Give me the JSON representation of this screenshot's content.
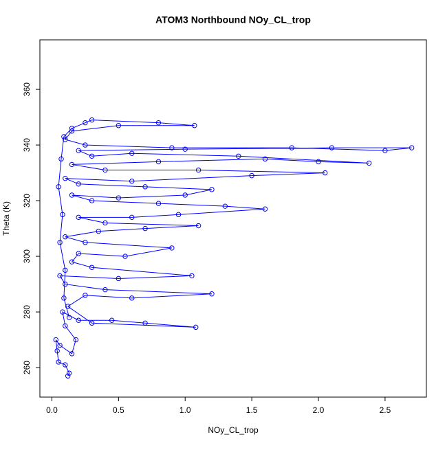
{
  "chart_data": {
    "type": "line",
    "markers": true,
    "color": "#0000ff",
    "title": "ATOM3 Northbound NOy_CL_trop",
    "x_label": "NOy_CL_trop",
    "y_label": "Theta (K)",
    "xlim": [
      -0.09,
      2.81
    ],
    "ylim": [
      249.4,
      377.8
    ],
    "xticks": [
      {
        "value": 0,
        "label": "0.0"
      },
      0.5,
      {
        "value": 1,
        "label": "1.0"
      },
      1.5,
      {
        "value": 2,
        "label": "2.0"
      },
      2.5
    ],
    "yticks": [
      260,
      280,
      300,
      320,
      340,
      360
    ],
    "grid": false,
    "x": [
      0.12,
      0.13,
      0.1,
      0.05,
      0.04,
      0.03,
      0.06,
      0.15,
      0.18,
      0.1,
      0.08,
      0.2,
      0.45,
      0.7,
      1.08,
      0.3,
      0.12,
      0.25,
      0.6,
      1.2,
      0.4,
      0.1,
      0.06,
      0.5,
      1.05,
      0.3,
      0.15,
      0.2,
      0.55,
      0.9,
      0.25,
      0.1,
      0.35,
      0.7,
      1.1,
      0.4,
      0.2,
      0.6,
      0.95,
      1.6,
      1.3,
      0.8,
      0.3,
      0.15,
      0.5,
      1.0,
      1.2,
      0.7,
      0.2,
      0.1,
      0.6,
      1.5,
      2.05,
      1.1,
      0.4,
      0.15,
      0.8,
      1.6,
      2.0,
      2.38,
      1.4,
      0.6,
      0.3,
      0.2,
      1.0,
      2.1,
      2.7,
      2.5,
      1.8,
      0.9,
      0.25,
      0.1,
      0.15,
      0.5,
      1.07,
      0.8,
      0.3,
      0.25,
      0.15,
      0.09,
      0.07,
      0.05,
      0.08,
      0.06,
      0.1,
      0.09,
      0.13
    ],
    "values": [
      257,
      258,
      261,
      262,
      266,
      270,
      268,
      265,
      270,
      275,
      280,
      277,
      277,
      276,
      274.5,
      276,
      282,
      286,
      285,
      286.5,
      288,
      290,
      293,
      292,
      293,
      296,
      298,
      301,
      300,
      303,
      305,
      307,
      309,
      310,
      311,
      312,
      314,
      314,
      315,
      317,
      318,
      319,
      320,
      322,
      321,
      322,
      324,
      325,
      326,
      328,
      327,
      329,
      330,
      331,
      331,
      333,
      334,
      335,
      334,
      333.5,
      336,
      337,
      336,
      338,
      338.5,
      339,
      339,
      338,
      339,
      339,
      340,
      342,
      345,
      347,
      347,
      348,
      349,
      348,
      346,
      343,
      335,
      325,
      315,
      305,
      295,
      285,
      278
    ]
  }
}
